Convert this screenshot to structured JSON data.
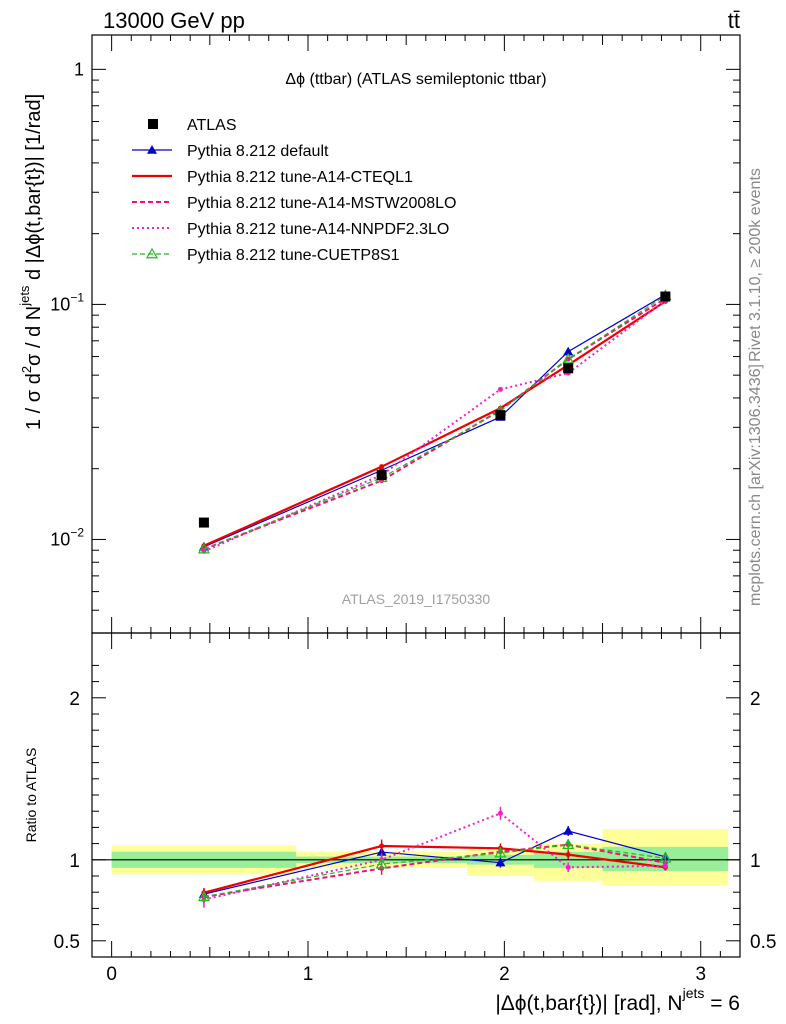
{
  "header": {
    "energy_label": "13000 GeV pp",
    "process_label": "tt̄"
  },
  "side_labels": {
    "rivet": "Rivet 3.1.10, ≥ 200k events",
    "source": "mcplots.cern.ch [arXiv:1306.3436]"
  },
  "chart_data": {
    "type": "line",
    "title": "Δϕ (ttbar) (ATLAS semileptonic ttbar)",
    "analysis_label": "ATLAS_2019_I1750330",
    "xlabel": "|Δϕ(t,bar{t})| [rad], N^jets = 6",
    "xlabel_main": "|Δϕ(t,bar{t})| [rad], N",
    "xlabel_sup": "jets",
    "xlabel_end": " = 6",
    "ylabel": "1 / σ d²σ / d N^jets d |Δϕ(t,bar{t})| [1/rad]",
    "ylabel_parts": {
      "a": "1 / σ d",
      "a_sup": "2",
      "b": "σ / d N",
      "b_sup": "jets",
      "c": " d |Δϕ(t,bar{t})| [1/rad]"
    },
    "ratio_ylabel": "Ratio to ATLAS",
    "xlim": [
      -0.1,
      3.2
    ],
    "ylim": [
      0.004,
      1.4
    ],
    "yscale": "log",
    "ratio_ylim": [
      0.4,
      2.4
    ],
    "x_ticks": [
      "0",
      "1",
      "2",
      "3"
    ],
    "x_tick_values": [
      0,
      1,
      2,
      3
    ],
    "y_ticks": [
      {
        "value": 1,
        "mant": "1",
        "exp": ""
      },
      {
        "value": 0.1,
        "mant": "10",
        "exp": "−1"
      },
      {
        "value": 0.01,
        "mant": "10",
        "exp": "−2"
      }
    ],
    "ratio_ticks": [
      {
        "value": 2,
        "label": "2"
      },
      {
        "value": 1,
        "label": "1"
      },
      {
        "value": 0.5,
        "label": "0.5"
      }
    ],
    "bins": [
      [
        0,
        0.94
      ],
      [
        0.94,
        1.81
      ],
      [
        1.81,
        2.15
      ],
      [
        2.15,
        2.5
      ],
      [
        2.5,
        3.14
      ]
    ],
    "x": [
      0.47,
      1.375,
      1.98,
      2.325,
      2.82
    ],
    "data": {
      "name": "ATLAS",
      "values": [
        0.0118,
        0.0188,
        0.0338,
        0.0535,
        0.108
      ],
      "color": "#000000"
    },
    "uncertainty_bands": {
      "inner_color": "#99ee99",
      "outer_color": "#ffff99",
      "inner": [
        [
          0.95,
          1.05
        ],
        [
          0.98,
          1.02
        ],
        [
          0.97,
          1.03
        ],
        [
          0.95,
          1.05
        ],
        [
          0.93,
          1.08
        ]
      ],
      "outer": [
        [
          0.91,
          1.09
        ],
        [
          0.95,
          1.05
        ],
        [
          0.9,
          1.07
        ],
        [
          0.87,
          1.1
        ],
        [
          0.84,
          1.19
        ]
      ]
    },
    "series": [
      {
        "name": "Pythia 8.212 default",
        "color": "#0000cc",
        "dash": "",
        "width": 1.2,
        "marker": "triangle",
        "values": [
          0.0093,
          0.0197,
          0.0332,
          0.063,
          0.11
        ],
        "ratio_err": [
          0.03,
          0.03,
          0.03,
          0.03,
          0.02
        ]
      },
      {
        "name": "Pythia 8.212 tune-A14-CTEQL1",
        "color": "#ee0000",
        "dash": "",
        "width": 2.2,
        "marker": "none",
        "values": [
          0.0094,
          0.0204,
          0.0362,
          0.0552,
          0.103
        ],
        "ratio_err": [
          0.03,
          0.04,
          0.03,
          0.03,
          0.02
        ]
      },
      {
        "name": "Pythia 8.212 tune-A14-MSTW2008LO",
        "color": "#ee1177",
        "dash": "5,3",
        "width": 2.0,
        "marker": "none",
        "values": [
          0.0091,
          0.0178,
          0.0355,
          0.0585,
          0.106
        ],
        "ratio_err": [
          0.04,
          0.04,
          0.03,
          0.03,
          0.02
        ]
      },
      {
        "name": "Pythia 8.212 tune-A14-NNPDF2.3LO",
        "color": "#ee22cc",
        "dash": "2,3",
        "width": 2.0,
        "marker": "none",
        "values": [
          0.0089,
          0.0188,
          0.0435,
          0.051,
          0.104
        ],
        "ratio_err": [
          0.05,
          0.04,
          0.04,
          0.03,
          0.02
        ]
      },
      {
        "name": "Pythia 8.212 tune-CUETP8S1",
        "color": "#22bb22",
        "dash": "5,3",
        "width": 1.2,
        "marker": "open-triangle",
        "values": [
          0.0091,
          0.0183,
          0.0352,
          0.0585,
          0.109
        ],
        "ratio_err": [
          0.03,
          0.03,
          0.03,
          0.03,
          0.02
        ]
      }
    ]
  }
}
